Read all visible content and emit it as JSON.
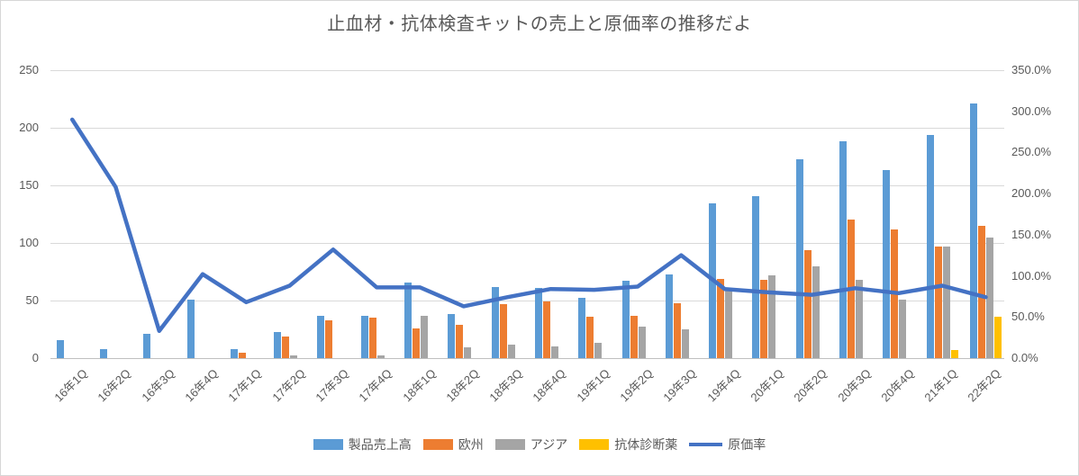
{
  "title": "止血材・抗体検査キットの売上と原価率の推移だよ",
  "chart_data": {
    "type": "combo-bar-line",
    "grid": true,
    "legend_position": "bottom",
    "categories": [
      "16年1Q",
      "16年2Q",
      "16年3Q",
      "16年4Q",
      "17年1Q",
      "17年2Q",
      "17年3Q",
      "17年4Q",
      "18年1Q",
      "18年2Q",
      "18年3Q",
      "18年4Q",
      "19年1Q",
      "19年2Q",
      "19年3Q",
      "19年4Q",
      "20年1Q",
      "20年2Q",
      "20年3Q",
      "20年4Q",
      "21年1Q",
      "22年2Q"
    ],
    "left_axis": {
      "min": 0,
      "max": 250,
      "step": 50,
      "ticks": [
        "0",
        "50",
        "100",
        "150",
        "200",
        "250"
      ]
    },
    "right_axis": {
      "min_pct": 0,
      "max_pct": 350,
      "step_pct": 50,
      "ticks": [
        "0.0%",
        "50.0%",
        "100.0%",
        "150.0%",
        "200.0%",
        "250.0%",
        "300.0%",
        "350.0%"
      ]
    },
    "series": [
      {
        "id": "sales",
        "name": "製品売上高",
        "type": "bar",
        "axis": "left",
        "color": "#5B9BD5",
        "values": [
          16,
          8,
          21,
          51,
          8,
          23,
          37,
          37,
          66,
          38,
          62,
          61,
          52,
          67,
          73,
          134,
          141,
          173,
          188,
          163,
          194,
          221
        ]
      },
      {
        "id": "europe",
        "name": "欧州",
        "type": "bar",
        "axis": "left",
        "color": "#ED7D31",
        "values": [
          null,
          null,
          null,
          null,
          5,
          19,
          33,
          35,
          26,
          29,
          47,
          49,
          36,
          37,
          48,
          69,
          68,
          94,
          120,
          112,
          97,
          115
        ]
      },
      {
        "id": "asia",
        "name": "アジア",
        "type": "bar",
        "axis": "left",
        "color": "#A5A5A5",
        "values": [
          null,
          null,
          null,
          null,
          null,
          2,
          null,
          2,
          37,
          9,
          12,
          10,
          13,
          27,
          25,
          59,
          72,
          80,
          68,
          51,
          97,
          105
        ]
      },
      {
        "id": "antibody-kit",
        "name": "抗体診断薬",
        "type": "bar",
        "axis": "left",
        "color": "#FFC000",
        "values": [
          null,
          null,
          null,
          null,
          null,
          null,
          null,
          null,
          null,
          null,
          null,
          null,
          null,
          null,
          null,
          null,
          null,
          null,
          null,
          null,
          7,
          36
        ]
      },
      {
        "id": "cost-rate",
        "name": "原価率",
        "type": "line",
        "axis": "right",
        "color": "#4472C4",
        "values_pct": [
          290,
          208,
          33,
          102,
          68,
          88,
          132,
          86,
          86,
          63,
          74,
          84,
          83,
          87,
          125,
          84,
          80,
          77,
          85,
          79,
          88,
          74
        ]
      }
    ]
  },
  "colors": {
    "grid": "#D9D9D9",
    "axis_line": "#BFBFBF",
    "text": "#595959"
  }
}
